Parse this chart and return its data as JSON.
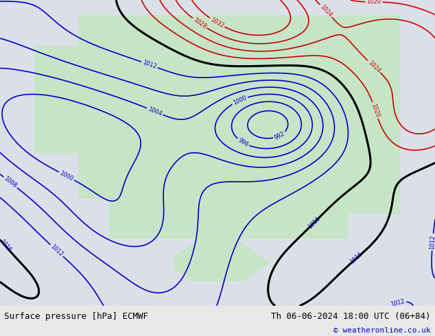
{
  "bottom_left_text": "Surface pressure [hPa] ECMWF",
  "bottom_right_text": "Th 06-06-2024 18:00 UTC (06+84)",
  "copyright_text": "© weatheronline.co.uk",
  "bg_color": "#e8e8e8",
  "map_bg_color": "#efefef",
  "contour_blue_color": "#0000cc",
  "contour_red_color": "#cc0000",
  "contour_black_color": "#000000",
  "text_color": "#000000",
  "footer_bg": "#cccccc",
  "fig_width": 6.34,
  "fig_height": 4.9,
  "dpi": 100,
  "font_size_bottom": 9,
  "font_size_copy": 8
}
